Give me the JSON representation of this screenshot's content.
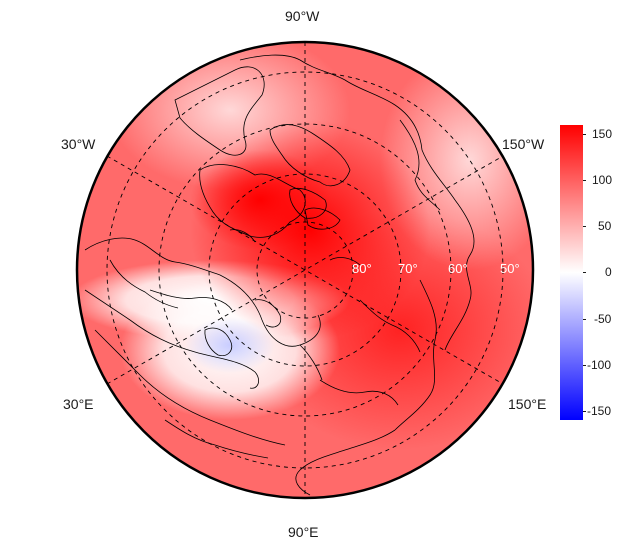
{
  "map": {
    "projection": "north-polar-stereographic",
    "variable_range": [
      -160,
      160
    ],
    "colors": {
      "high": "#ff0000",
      "mid": "#ffffff",
      "low": "#0000ff",
      "coast": "#000000",
      "graticule": "#000000"
    },
    "longitude_labels": {
      "top": "90°W",
      "bottom": "90°E",
      "upper_left": "30°W",
      "lower_left": "30°E",
      "upper_right": "150°W",
      "lower_right": "150°E"
    },
    "latitude_labels": [
      "80°",
      "70°",
      "60°",
      "50°"
    ]
  },
  "colorbar": {
    "ticks": [
      "150",
      "100",
      "50",
      "0",
      "-50",
      "-100",
      "-150"
    ],
    "tick_values": [
      150,
      100,
      50,
      0,
      -50,
      -100,
      -150
    ],
    "range": [
      -160,
      160
    ]
  }
}
